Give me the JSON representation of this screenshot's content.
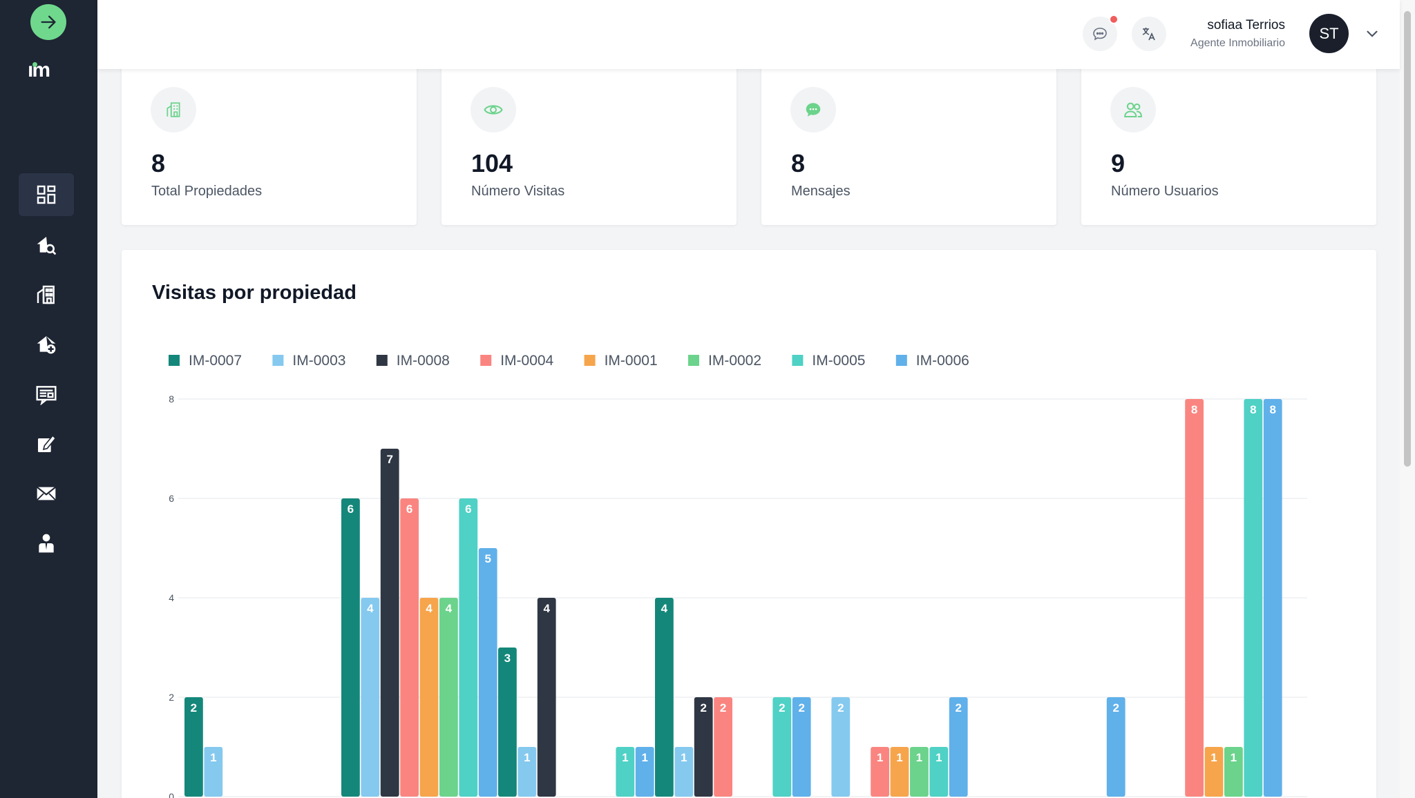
{
  "header": {
    "user_name": "sofiaa Terrios",
    "user_role": "Agente Inmobiliario",
    "avatar_initials": "ST"
  },
  "icons": {
    "toggle": "arrow-right-icon",
    "messages": "chat-bubble-icon",
    "translate": "translate-icon",
    "user_menu": "chevron-down-icon"
  },
  "colors": {
    "sidebar_bg": "#1e2533",
    "accent_green": "#6fd88d",
    "notification": "#f05d5d"
  },
  "stats": [
    {
      "value": "8",
      "label": "Total Propiedades",
      "icon": "building-icon"
    },
    {
      "value": "104",
      "label": "Número Visitas",
      "icon": "eye-icon"
    },
    {
      "value": "8",
      "label": "Mensajes",
      "icon": "chat-icon"
    },
    {
      "value": "9",
      "label": "Número Usuarios",
      "icon": "users-icon"
    }
  ],
  "chart": {
    "title": "Visitas por propiedad"
  },
  "chart_data": {
    "type": "bar",
    "legend_position": "top-left",
    "ylim": [
      0,
      8
    ],
    "yticks": [
      0,
      2,
      4,
      6,
      8
    ],
    "grid": true,
    "series": [
      {
        "name": "IM-0007",
        "color": "#14877a"
      },
      {
        "name": "IM-0003",
        "color": "#85c9ef"
      },
      {
        "name": "IM-0008",
        "color": "#2f3744"
      },
      {
        "name": "IM-0004",
        "color": "#fa8580"
      },
      {
        "name": "IM-0001",
        "color": "#f6a54c"
      },
      {
        "name": "IM-0002",
        "color": "#6bd38b"
      },
      {
        "name": "IM-0005",
        "color": "#4fd1c5"
      },
      {
        "name": "IM-0006",
        "color": "#60b0ea"
      }
    ],
    "groups": [
      [
        2,
        1,
        0,
        0,
        0,
        0,
        0,
        0
      ],
      [
        6,
        4,
        7,
        6,
        4,
        4,
        6,
        5
      ],
      [
        3,
        1,
        4,
        0,
        0,
        0,
        1,
        1
      ],
      [
        4,
        1,
        2,
        2,
        0,
        0,
        2,
        2
      ],
      [
        0,
        2,
        0,
        1,
        1,
        1,
        1,
        2
      ],
      [
        0,
        0,
        0,
        0,
        0,
        0,
        0,
        2
      ],
      [
        0,
        0,
        0,
        8,
        1,
        1,
        8,
        8
      ]
    ]
  }
}
